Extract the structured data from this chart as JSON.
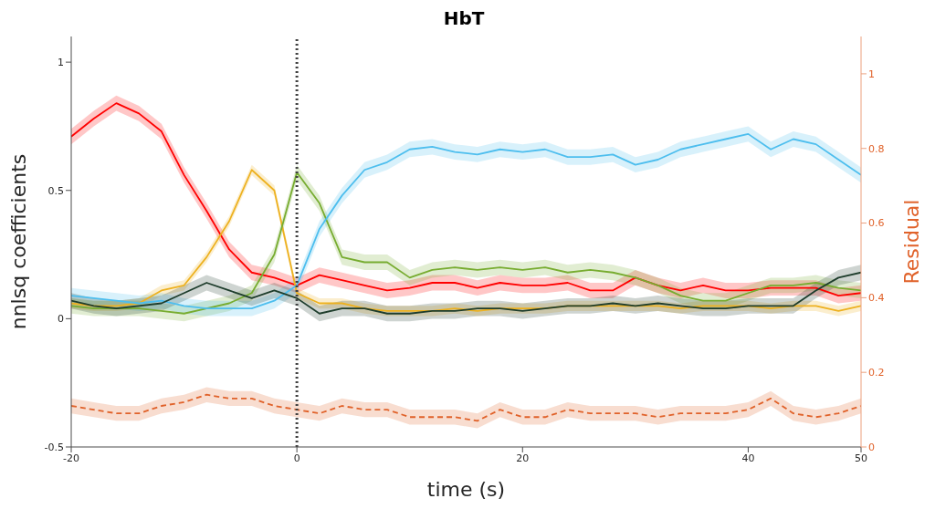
{
  "chart_data": {
    "type": "line",
    "title": "HbT",
    "xlabel": "time (s)",
    "ylabel": "nnlsq coefficients",
    "y2label": "Residual",
    "x": [
      -20,
      -18,
      -16,
      -14,
      -12,
      -10,
      -8,
      -6,
      -4,
      -2,
      0,
      2,
      4,
      6,
      8,
      10,
      12,
      14,
      16,
      18,
      20,
      22,
      24,
      26,
      28,
      30,
      32,
      34,
      36,
      38,
      40,
      42,
      44,
      46,
      48,
      50
    ],
    "xlim": [
      -20,
      50
    ],
    "xticks": [
      -20,
      0,
      20,
      40,
      50
    ],
    "ylim": [
      -0.5,
      1.1
    ],
    "yticks": [
      -0.5,
      0,
      0.5,
      1
    ],
    "y2lim": [
      0,
      1.1
    ],
    "y2ticks": [
      0,
      0.2,
      0.4,
      0.6,
      0.8,
      1
    ],
    "grid": false,
    "legend": false,
    "marker": "none",
    "ref_lines": [
      {
        "axis": "x",
        "value": 0,
        "color": "#404040",
        "line_style": "dotted"
      }
    ],
    "series": [
      {
        "color": "#ff0000",
        "values": [
          0.71,
          0.78,
          0.84,
          0.8,
          0.73,
          0.56,
          0.42,
          0.27,
          0.18,
          0.16,
          0.13,
          0.17,
          0.15,
          0.13,
          0.11,
          0.12,
          0.14,
          0.14,
          0.12,
          0.14,
          0.13,
          0.13,
          0.14,
          0.11,
          0.11,
          0.16,
          0.13,
          0.11,
          0.13,
          0.11,
          0.11,
          0.12,
          0.12,
          0.12,
          0.09,
          0.1
        ],
        "lower": [
          0.68,
          0.75,
          0.81,
          0.77,
          0.7,
          0.53,
          0.39,
          0.24,
          0.15,
          0.13,
          0.1,
          0.14,
          0.12,
          0.1,
          0.08,
          0.09,
          0.11,
          0.11,
          0.09,
          0.11,
          0.1,
          0.1,
          0.11,
          0.08,
          0.08,
          0.13,
          0.1,
          0.08,
          0.1,
          0.08,
          0.08,
          0.09,
          0.09,
          0.09,
          0.06,
          0.07
        ],
        "upper": [
          0.74,
          0.81,
          0.87,
          0.83,
          0.76,
          0.59,
          0.45,
          0.3,
          0.21,
          0.19,
          0.16,
          0.2,
          0.18,
          0.16,
          0.14,
          0.15,
          0.17,
          0.17,
          0.15,
          0.17,
          0.16,
          0.16,
          0.17,
          0.14,
          0.14,
          0.19,
          0.16,
          0.14,
          0.16,
          0.14,
          0.14,
          0.15,
          0.15,
          0.15,
          0.12,
          0.13
        ]
      },
      {
        "color": "#edb120",
        "values": [
          0.06,
          0.05,
          0.05,
          0.06,
          0.11,
          0.13,
          0.24,
          0.38,
          0.58,
          0.5,
          0.1,
          0.06,
          0.06,
          0.04,
          0.03,
          0.03,
          0.03,
          0.04,
          0.03,
          0.04,
          0.04,
          0.04,
          0.05,
          0.05,
          0.05,
          0.05,
          0.05,
          0.04,
          0.05,
          0.05,
          0.05,
          0.04,
          0.05,
          0.05,
          0.03,
          0.05
        ],
        "lower": [
          0.04,
          0.03,
          0.03,
          0.04,
          0.09,
          0.11,
          0.22,
          0.36,
          0.56,
          0.48,
          0.08,
          0.04,
          0.04,
          0.02,
          0.01,
          0.01,
          0.01,
          0.02,
          0.01,
          0.02,
          0.02,
          0.02,
          0.03,
          0.03,
          0.03,
          0.03,
          0.03,
          0.02,
          0.03,
          0.03,
          0.03,
          0.02,
          0.03,
          0.03,
          0.01,
          0.03
        ],
        "upper": [
          0.08,
          0.07,
          0.07,
          0.08,
          0.13,
          0.15,
          0.26,
          0.4,
          0.6,
          0.52,
          0.12,
          0.08,
          0.08,
          0.06,
          0.05,
          0.05,
          0.05,
          0.06,
          0.05,
          0.06,
          0.06,
          0.06,
          0.07,
          0.07,
          0.07,
          0.07,
          0.07,
          0.06,
          0.07,
          0.07,
          0.07,
          0.06,
          0.07,
          0.07,
          0.05,
          0.07
        ]
      },
      {
        "color": "#77ac30",
        "values": [
          0.05,
          0.04,
          0.04,
          0.04,
          0.03,
          0.02,
          0.04,
          0.06,
          0.1,
          0.25,
          0.57,
          0.45,
          0.24,
          0.22,
          0.22,
          0.16,
          0.19,
          0.2,
          0.19,
          0.2,
          0.19,
          0.2,
          0.18,
          0.19,
          0.18,
          0.16,
          0.13,
          0.09,
          0.07,
          0.07,
          0.1,
          0.13,
          0.13,
          0.14,
          0.12,
          0.11
        ],
        "lower": [
          0.02,
          0.01,
          0.01,
          0.01,
          0.0,
          -0.01,
          0.01,
          0.03,
          0.07,
          0.22,
          0.54,
          0.42,
          0.21,
          0.19,
          0.19,
          0.13,
          0.16,
          0.17,
          0.16,
          0.17,
          0.16,
          0.17,
          0.15,
          0.16,
          0.15,
          0.13,
          0.1,
          0.06,
          0.04,
          0.04,
          0.07,
          0.1,
          0.1,
          0.11,
          0.09,
          0.08
        ],
        "upper": [
          0.08,
          0.07,
          0.07,
          0.07,
          0.06,
          0.05,
          0.07,
          0.09,
          0.13,
          0.28,
          0.6,
          0.48,
          0.27,
          0.25,
          0.25,
          0.19,
          0.22,
          0.23,
          0.22,
          0.23,
          0.22,
          0.23,
          0.21,
          0.22,
          0.21,
          0.19,
          0.16,
          0.12,
          0.1,
          0.1,
          0.13,
          0.16,
          0.16,
          0.17,
          0.15,
          0.14
        ]
      },
      {
        "color": "#4dbeee",
        "values": [
          0.09,
          0.08,
          0.07,
          0.06,
          0.07,
          0.05,
          0.04,
          0.04,
          0.04,
          0.07,
          0.13,
          0.35,
          0.48,
          0.58,
          0.61,
          0.66,
          0.67,
          0.65,
          0.64,
          0.66,
          0.65,
          0.66,
          0.63,
          0.63,
          0.64,
          0.6,
          0.62,
          0.66,
          0.68,
          0.7,
          0.72,
          0.66,
          0.7,
          0.68,
          0.62,
          0.56
        ],
        "lower": [
          0.06,
          0.05,
          0.04,
          0.03,
          0.04,
          0.02,
          0.01,
          0.01,
          0.01,
          0.04,
          0.1,
          0.32,
          0.45,
          0.55,
          0.58,
          0.63,
          0.64,
          0.62,
          0.61,
          0.63,
          0.62,
          0.63,
          0.6,
          0.6,
          0.61,
          0.57,
          0.59,
          0.63,
          0.65,
          0.67,
          0.69,
          0.63,
          0.67,
          0.65,
          0.59,
          0.53
        ],
        "upper": [
          0.12,
          0.11,
          0.1,
          0.09,
          0.1,
          0.08,
          0.07,
          0.07,
          0.07,
          0.1,
          0.16,
          0.38,
          0.51,
          0.61,
          0.64,
          0.69,
          0.7,
          0.68,
          0.67,
          0.69,
          0.68,
          0.69,
          0.66,
          0.66,
          0.67,
          0.63,
          0.65,
          0.69,
          0.71,
          0.73,
          0.75,
          0.69,
          0.73,
          0.71,
          0.65,
          0.59
        ]
      },
      {
        "color": "#1e3d2c",
        "values": [
          0.07,
          0.05,
          0.04,
          0.05,
          0.06,
          0.1,
          0.14,
          0.11,
          0.08,
          0.11,
          0.08,
          0.02,
          0.04,
          0.04,
          0.02,
          0.02,
          0.03,
          0.03,
          0.04,
          0.04,
          0.03,
          0.04,
          0.05,
          0.05,
          0.06,
          0.05,
          0.06,
          0.05,
          0.04,
          0.04,
          0.05,
          0.05,
          0.05,
          0.11,
          0.16,
          0.18
        ],
        "lower": [
          0.04,
          0.02,
          0.01,
          0.02,
          0.03,
          0.07,
          0.11,
          0.08,
          0.05,
          0.08,
          0.05,
          -0.01,
          0.01,
          0.01,
          -0.01,
          -0.01,
          0.0,
          0.0,
          0.01,
          0.01,
          0.0,
          0.01,
          0.02,
          0.02,
          0.03,
          0.02,
          0.03,
          0.02,
          0.01,
          0.01,
          0.02,
          0.02,
          0.02,
          0.08,
          0.13,
          0.15
        ],
        "upper": [
          0.1,
          0.08,
          0.07,
          0.08,
          0.09,
          0.13,
          0.17,
          0.14,
          0.11,
          0.14,
          0.11,
          0.05,
          0.07,
          0.07,
          0.05,
          0.05,
          0.06,
          0.06,
          0.07,
          0.07,
          0.06,
          0.07,
          0.08,
          0.08,
          0.09,
          0.08,
          0.09,
          0.08,
          0.07,
          0.07,
          0.08,
          0.08,
          0.08,
          0.14,
          0.19,
          0.21
        ]
      },
      {
        "color": "#e0622a",
        "axis": "y2",
        "line_style": "dashed",
        "values": [
          0.11,
          0.1,
          0.09,
          0.09,
          0.11,
          0.12,
          0.14,
          0.13,
          0.13,
          0.11,
          0.1,
          0.09,
          0.11,
          0.1,
          0.1,
          0.08,
          0.08,
          0.08,
          0.07,
          0.1,
          0.08,
          0.08,
          0.1,
          0.09,
          0.09,
          0.09,
          0.08,
          0.09,
          0.09,
          0.09,
          0.1,
          0.13,
          0.09,
          0.08,
          0.09,
          0.11
        ],
        "lower": [
          0.09,
          0.08,
          0.07,
          0.07,
          0.09,
          0.1,
          0.12,
          0.11,
          0.11,
          0.09,
          0.08,
          0.07,
          0.09,
          0.08,
          0.08,
          0.06,
          0.06,
          0.06,
          0.05,
          0.08,
          0.06,
          0.06,
          0.08,
          0.07,
          0.07,
          0.07,
          0.06,
          0.07,
          0.07,
          0.07,
          0.08,
          0.11,
          0.07,
          0.06,
          0.07,
          0.09
        ],
        "upper": [
          0.13,
          0.12,
          0.11,
          0.11,
          0.13,
          0.14,
          0.16,
          0.15,
          0.15,
          0.13,
          0.12,
          0.11,
          0.13,
          0.12,
          0.12,
          0.1,
          0.1,
          0.1,
          0.09,
          0.12,
          0.1,
          0.1,
          0.12,
          0.11,
          0.11,
          0.11,
          0.1,
          0.11,
          0.11,
          0.11,
          0.12,
          0.15,
          0.11,
          0.1,
          0.11,
          0.13
        ]
      }
    ]
  }
}
